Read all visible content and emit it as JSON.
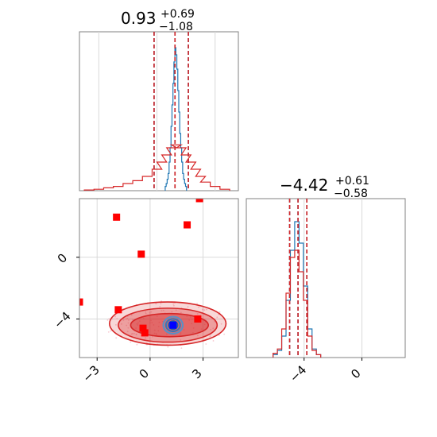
{
  "chart_data": [
    {
      "type": "histogram",
      "panel": "top-left marginal (parameter 1)",
      "title": {
        "median": "0.93",
        "plus": "+0.69",
        "minus": "−1.08"
      },
      "xlim": [
        -4,
        4.2
      ],
      "grid": true,
      "series": [
        {
          "color": "#1f77b4",
          "quantiles": [
            0.93,
            -0.15,
            1.62
          ],
          "bins": [
            [
              0.45,
              0.03
            ],
            [
              0.5,
              0.05
            ],
            [
              0.55,
              0.08
            ],
            [
              0.6,
              0.12
            ],
            [
              0.65,
              0.2
            ],
            [
              0.7,
              0.3
            ],
            [
              0.75,
              0.45
            ],
            [
              0.8,
              0.6
            ],
            [
              0.85,
              0.75
            ],
            [
              0.9,
              0.9
            ],
            [
              0.95,
              1.0
            ],
            [
              1.0,
              0.95
            ],
            [
              1.05,
              0.85
            ],
            [
              1.1,
              0.7
            ],
            [
              1.15,
              0.55
            ],
            [
              1.2,
              0.4
            ],
            [
              1.25,
              0.3
            ],
            [
              1.3,
              0.2
            ],
            [
              1.35,
              0.12
            ],
            [
              1.4,
              0.08
            ],
            [
              1.45,
              0.05
            ],
            [
              1.5,
              0.03
            ]
          ]
        },
        {
          "color": "#d62728",
          "quantiles": [
            0.93,
            -0.15,
            1.62
          ],
          "bins": [
            [
              -3.5,
              0.005
            ],
            [
              -3,
              0.01
            ],
            [
              -2.5,
              0.02
            ],
            [
              -2,
              0.03
            ],
            [
              -1.5,
              0.05
            ],
            [
              -1,
              0.07
            ],
            [
              -0.5,
              0.1
            ],
            [
              0,
              0.15
            ],
            [
              0.25,
              0.2
            ],
            [
              0.5,
              0.25
            ],
            [
              0.75,
              0.3
            ],
            [
              1,
              0.32
            ],
            [
              1.25,
              0.3
            ],
            [
              1.5,
              0.25
            ],
            [
              1.75,
              0.2
            ],
            [
              2,
              0.15
            ],
            [
              2.25,
              0.1
            ],
            [
              2.5,
              0.06
            ],
            [
              3,
              0.03
            ],
            [
              3.5,
              0.01
            ]
          ]
        }
      ]
    },
    {
      "type": "histogram",
      "panel": "bottom-right marginal (parameter 2)",
      "title": {
        "median": "−4.42",
        "plus": "+0.61",
        "minus": "−0.58"
      },
      "xlim": [
        -8,
        3
      ],
      "xticks": [
        "−4",
        "0"
      ],
      "grid": true,
      "series": [
        {
          "color": "#1f77b4",
          "quantiles": [
            -4.42,
            -5.0,
            -3.81
          ],
          "bins": [
            [
              -6,
              0.02
            ],
            [
              -5.7,
              0.05
            ],
            [
              -5.4,
              0.15
            ],
            [
              -5.1,
              0.4
            ],
            [
              -4.8,
              0.75
            ],
            [
              -4.5,
              0.95
            ],
            [
              -4.2,
              0.8
            ],
            [
              -3.9,
              0.5
            ],
            [
              -3.6,
              0.2
            ],
            [
              -3.3,
              0.06
            ],
            [
              -3,
              0.02
            ]
          ]
        },
        {
          "color": "#d62728",
          "quantiles": [
            -4.42,
            -5.0,
            -3.81
          ],
          "bins": [
            [
              -6,
              0.03
            ],
            [
              -5.7,
              0.06
            ],
            [
              -5.4,
              0.2
            ],
            [
              -5.1,
              0.45
            ],
            [
              -4.8,
              0.7
            ],
            [
              -4.5,
              0.75
            ],
            [
              -4.2,
              0.6
            ],
            [
              -3.9,
              0.4
            ],
            [
              -3.6,
              0.15
            ],
            [
              -3.3,
              0.05
            ],
            [
              -3,
              0.02
            ]
          ]
        }
      ]
    },
    {
      "type": "scatter",
      "panel": "bottom-left 2D (parameter 1 vs parameter 2)",
      "xlim": [
        -4,
        5
      ],
      "ylim": [
        -6.5,
        3.8
      ],
      "xticks": [
        "−3",
        "0",
        "3"
      ],
      "yticks": [
        "0",
        "−4"
      ],
      "grid": true,
      "contours": [
        {
          "color": "#d62728",
          "fill": true,
          "center": [
            1.0,
            -4.4
          ],
          "levels": [
            [
              1.0,
              -4.3,
              3.3,
              1.4
            ],
            [
              1.0,
              -4.4,
              2.8,
              1.1
            ],
            [
              1.1,
              -4.4,
              2.2,
              0.75
            ]
          ]
        },
        {
          "color": "#1f77b4",
          "fill": false,
          "center": [
            1.3,
            -4.4
          ],
          "levels": [
            [
              1.3,
              -4.4,
              0.55,
              0.55
            ],
            [
              1.3,
              -4.4,
              0.4,
              0.4
            ],
            [
              1.3,
              -4.4,
              0.25,
              0.25
            ]
          ]
        }
      ],
      "markers": [
        {
          "series": "red",
          "color": "#ff0000",
          "points": [
            [
              2.8,
              3.8
            ],
            [
              -1.9,
              2.6
            ],
            [
              2.1,
              2.1
            ],
            [
              -0.5,
              0.2
            ],
            [
              -4,
              -2.9
            ],
            [
              -1.8,
              -3.4
            ],
            [
              -0.4,
              -4.6
            ],
            [
              -0.3,
              -4.9
            ],
            [
              2.7,
              -4.0
            ]
          ]
        },
        {
          "series": "blue",
          "color": "#0000ff",
          "points": [
            [
              1.3,
              -4.4
            ]
          ]
        }
      ]
    }
  ]
}
